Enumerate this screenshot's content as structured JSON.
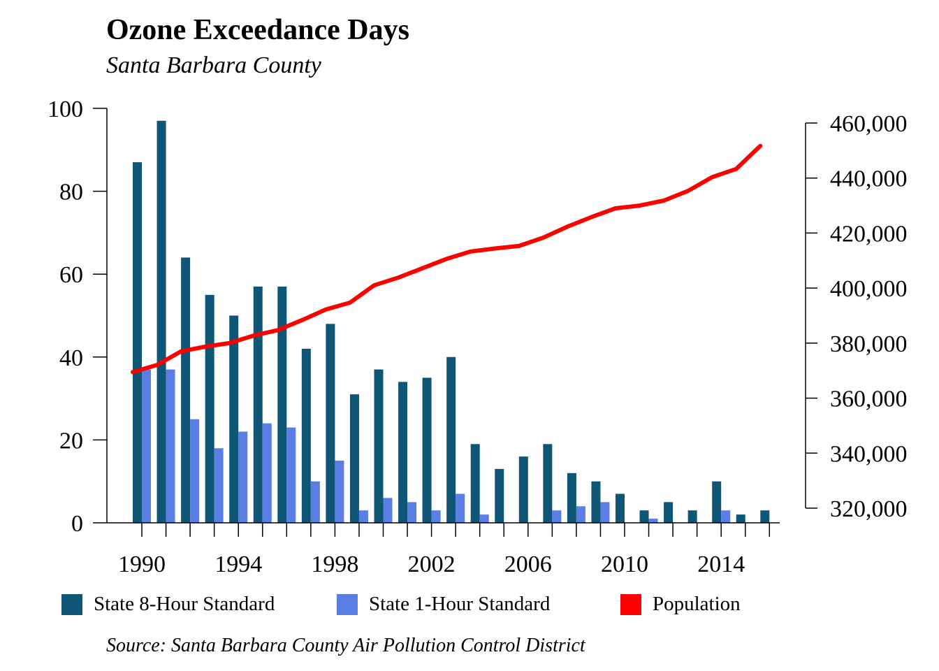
{
  "chart_data": {
    "type": "bar",
    "title": "Ozone Exceedance Days",
    "subtitle": "Santa Barbara County",
    "source": "Source: Santa Barbara County Air Pollution Control District",
    "x": [
      1990,
      1991,
      1992,
      1993,
      1994,
      1995,
      1996,
      1997,
      1998,
      1999,
      2000,
      2001,
      2002,
      2003,
      2004,
      2005,
      2006,
      2007,
      2008,
      2009,
      2010,
      2011,
      2012,
      2013,
      2014,
      2015,
      2016
    ],
    "x_tick_labels": [
      "1990",
      "1994",
      "1998",
      "2002",
      "2006",
      "2010",
      "2014"
    ],
    "ylim": [
      0,
      100
    ],
    "y_ticks": [
      0,
      20,
      40,
      60,
      80,
      100
    ],
    "y_tick_labels": [
      "0",
      "20",
      "40",
      "60",
      "80",
      "100"
    ],
    "y2lim": [
      315000,
      460000
    ],
    "y2_ticks": [
      320000,
      340000,
      360000,
      380000,
      400000,
      420000,
      440000,
      460000
    ],
    "y2_tick_labels": [
      "320,000",
      "340,000",
      "360,000",
      "380,000",
      "400,000",
      "420,000",
      "440,000",
      "460,000"
    ],
    "series": [
      {
        "name": "State 8-Hour Standard",
        "type": "bar",
        "axis": "left",
        "color": "#0e5576",
        "values": [
          87,
          97,
          64,
          55,
          50,
          57,
          57,
          42,
          48,
          31,
          37,
          34,
          35,
          40,
          19,
          13,
          16,
          19,
          12,
          10,
          7,
          3,
          5,
          3,
          10,
          2,
          3
        ]
      },
      {
        "name": "State 1-Hour Standard",
        "type": "bar",
        "axis": "left",
        "color": "#5b7ee5",
        "values": [
          37,
          37,
          25,
          18,
          22,
          24,
          23,
          10,
          15,
          3,
          6,
          5,
          3,
          7,
          2,
          0,
          0,
          3,
          4,
          5,
          0,
          1,
          0,
          0,
          3,
          0,
          0
        ]
      },
      {
        "name": "Population",
        "type": "line",
        "axis": "right",
        "color": "#ff0000",
        "values": [
          369500,
          372000,
          377000,
          378700,
          380000,
          382700,
          384700,
          388300,
          392200,
          394700,
          401000,
          403800,
          407200,
          410600,
          413300,
          414400,
          415300,
          418300,
          422300,
          425800,
          429000,
          430000,
          431800,
          435300,
          440300,
          443300,
          451700
        ]
      }
    ],
    "legend_position": "bottom",
    "grid": false
  }
}
